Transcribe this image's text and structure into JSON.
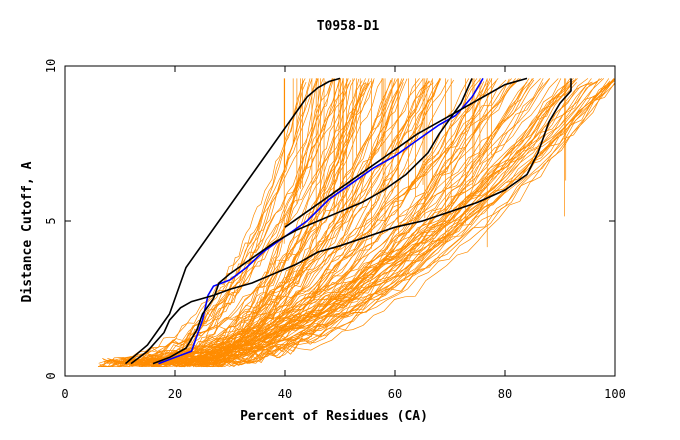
{
  "chart_data": {
    "type": "line",
    "title": "T0958-D1",
    "xlabel": "Percent of Residues (CA)",
    "ylabel": "Distance Cutoff, A",
    "xlim": [
      0,
      100
    ],
    "ylim": [
      0,
      10
    ],
    "x_ticks": [
      0,
      20,
      40,
      60,
      80,
      100
    ],
    "y_ticks": [
      0,
      5,
      10
    ],
    "x_tick_labels": [
      "0",
      "20",
      "40",
      "60",
      "80",
      "100"
    ],
    "y_tick_labels": [
      "0",
      "5",
      "10"
    ],
    "colors": {
      "background_series": "#ff8c00",
      "highlight_blue": "#0000ff",
      "highlight_black": "#000000",
      "axes": "#000000"
    },
    "background_series_count": 120,
    "series": [
      {
        "color": "#0000ff",
        "points": [
          [
            17,
            0.4
          ],
          [
            20,
            0.6
          ],
          [
            23,
            0.8
          ],
          [
            24,
            1.3
          ],
          [
            25,
            1.8
          ],
          [
            26,
            2.6
          ],
          [
            27,
            2.9
          ],
          [
            30,
            3.1
          ],
          [
            33,
            3.5
          ],
          [
            36,
            4.0
          ],
          [
            40,
            4.5
          ],
          [
            44,
            5.0
          ],
          [
            48,
            5.7
          ],
          [
            52,
            6.2
          ],
          [
            56,
            6.7
          ],
          [
            60,
            7.1
          ],
          [
            64,
            7.6
          ],
          [
            68,
            8.1
          ],
          [
            71,
            8.4
          ],
          [
            74,
            9.0
          ],
          [
            76,
            9.6
          ]
        ]
      },
      {
        "color": "#000000",
        "points": [
          [
            12,
            0.4
          ],
          [
            15,
            0.8
          ],
          [
            18,
            1.4
          ],
          [
            19,
            1.8
          ],
          [
            21,
            2.2
          ],
          [
            23,
            2.4
          ],
          [
            27,
            2.6
          ],
          [
            30,
            2.8
          ],
          [
            34,
            3.0
          ],
          [
            38,
            3.3
          ],
          [
            42,
            3.6
          ],
          [
            46,
            4.0
          ],
          [
            50,
            4.2
          ],
          [
            55,
            4.5
          ],
          [
            60,
            4.8
          ],
          [
            65,
            5.0
          ],
          [
            70,
            5.3
          ],
          [
            75,
            5.6
          ],
          [
            80,
            6.0
          ],
          [
            84,
            6.5
          ],
          [
            86,
            7.2
          ],
          [
            88,
            8.2
          ],
          [
            90,
            8.8
          ],
          [
            92,
            9.2
          ],
          [
            92,
            9.6
          ]
        ]
      },
      {
        "color": "#000000",
        "points": [
          [
            11,
            0.4
          ],
          [
            13,
            0.7
          ],
          [
            15,
            1.0
          ],
          [
            17,
            1.5
          ],
          [
            19,
            2.0
          ],
          [
            20,
            2.5
          ],
          [
            21,
            3.0
          ],
          [
            22,
            3.5
          ],
          [
            24,
            4.0
          ],
          [
            26,
            4.5
          ],
          [
            28,
            5.0
          ],
          [
            30,
            5.5
          ],
          [
            32,
            6.0
          ],
          [
            34,
            6.5
          ],
          [
            36,
            7.0
          ],
          [
            38,
            7.5
          ],
          [
            40,
            8.0
          ],
          [
            42,
            8.5
          ],
          [
            44,
            9.0
          ],
          [
            46,
            9.3
          ],
          [
            48,
            9.5
          ],
          [
            50,
            9.6
          ]
        ]
      },
      {
        "color": "#000000",
        "points": [
          [
            16,
            0.4
          ],
          [
            19,
            0.6
          ],
          [
            22,
            0.9
          ],
          [
            24,
            1.5
          ],
          [
            25,
            2.0
          ],
          [
            27,
            2.5
          ],
          [
            28,
            3.0
          ],
          [
            30,
            3.3
          ],
          [
            34,
            3.8
          ],
          [
            38,
            4.3
          ],
          [
            42,
            4.7
          ],
          [
            46,
            5.0
          ],
          [
            50,
            5.3
          ],
          [
            54,
            5.6
          ],
          [
            58,
            6.0
          ],
          [
            62,
            6.5
          ],
          [
            66,
            7.2
          ],
          [
            68,
            7.8
          ],
          [
            70,
            8.3
          ],
          [
            72,
            8.8
          ],
          [
            73,
            9.2
          ],
          [
            74,
            9.6
          ]
        ]
      },
      {
        "color": "#000000",
        "points": [
          [
            40,
            4.8
          ],
          [
            44,
            5.3
          ],
          [
            48,
            5.8
          ],
          [
            52,
            6.3
          ],
          [
            56,
            6.8
          ],
          [
            60,
            7.3
          ],
          [
            64,
            7.8
          ],
          [
            68,
            8.2
          ],
          [
            72,
            8.6
          ],
          [
            76,
            9.0
          ],
          [
            80,
            9.4
          ],
          [
            84,
            9.6
          ]
        ]
      }
    ]
  }
}
